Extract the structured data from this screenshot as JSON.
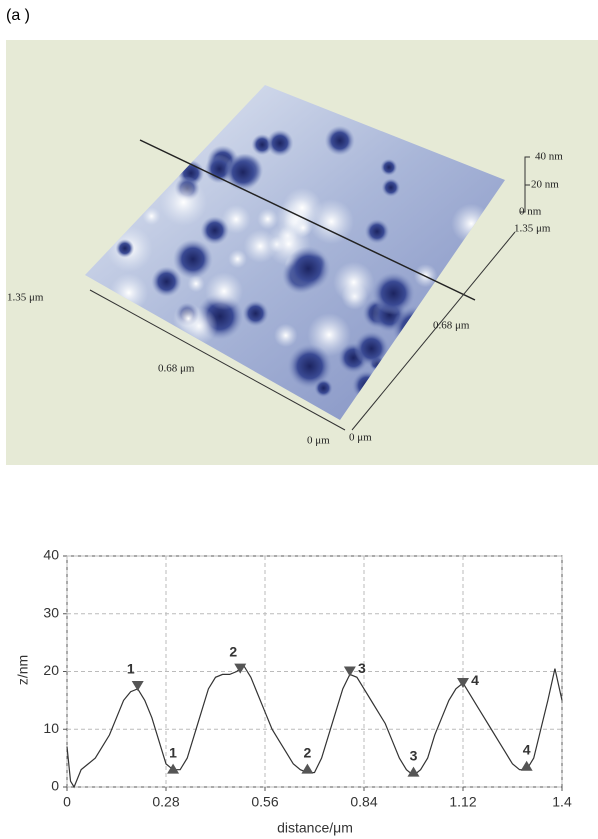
{
  "panel_label": "(a )",
  "afm_image": {
    "z_labels": [
      "40 nm",
      "20 nm",
      "0 nm"
    ],
    "right_axis_labels": [
      "1.35 μm",
      "0.68 μm",
      "0 μm"
    ],
    "left_axis_labels": [
      "1.35 μm",
      "0.68 μm",
      "0 μm"
    ]
  },
  "chart_data": {
    "type": "line",
    "xlabel": "distance/μm",
    "ylabel": "z/nm",
    "x": [
      0,
      0.01,
      0.02,
      0.04,
      0.06,
      0.08,
      0.1,
      0.12,
      0.14,
      0.16,
      0.18,
      0.2,
      0.22,
      0.24,
      0.26,
      0.28,
      0.3,
      0.32,
      0.34,
      0.36,
      0.38,
      0.4,
      0.42,
      0.44,
      0.46,
      0.48,
      0.5,
      0.52,
      0.54,
      0.56,
      0.58,
      0.6,
      0.62,
      0.64,
      0.66,
      0.68,
      0.7,
      0.72,
      0.74,
      0.76,
      0.78,
      0.8,
      0.82,
      0.84,
      0.86,
      0.88,
      0.9,
      0.92,
      0.94,
      0.96,
      0.98,
      1.0,
      1.02,
      1.04,
      1.06,
      1.08,
      1.1,
      1.12,
      1.14,
      1.16,
      1.18,
      1.2,
      1.22,
      1.24,
      1.26,
      1.28,
      1.3,
      1.32,
      1.34,
      1.36,
      1.38,
      1.4
    ],
    "values": [
      7,
      1,
      0,
      3,
      4,
      5,
      7,
      9,
      12,
      15,
      16.5,
      17,
      15,
      12,
      8,
      4,
      3,
      3,
      5,
      9,
      13,
      17,
      19,
      19.5,
      19.5,
      20,
      21,
      19,
      16,
      13,
      10,
      8,
      6,
      4,
      3,
      2.5,
      2.5,
      5,
      9,
      13,
      17,
      19.5,
      19,
      17,
      15,
      13,
      11,
      8,
      5,
      3,
      2,
      3,
      5,
      9,
      12,
      15,
      17,
      18,
      16,
      14,
      12,
      10,
      8,
      6,
      4,
      3,
      3,
      5,
      10,
      15,
      20.5,
      15
    ],
    "color": "#333333",
    "xlim": [
      0,
      1.4
    ],
    "ylim": [
      0,
      40
    ],
    "xticks": [
      0,
      0.28,
      0.56,
      0.84,
      1.12,
      1.4
    ],
    "yticks": [
      0,
      10,
      20,
      30,
      40
    ],
    "grid": true,
    "markers": [
      {
        "x": 0.2,
        "y": 17.5,
        "label": "1",
        "kind": "peak"
      },
      {
        "x": 0.3,
        "y": 3,
        "label": "1",
        "kind": "trough"
      },
      {
        "x": 0.49,
        "y": 20.5,
        "label": "2",
        "kind": "peak"
      },
      {
        "x": 0.68,
        "y": 3,
        "label": "2",
        "kind": "trough"
      },
      {
        "x": 0.8,
        "y": 20,
        "label": "3",
        "kind": "peak"
      },
      {
        "x": 0.98,
        "y": 2.5,
        "label": "3",
        "kind": "trough"
      },
      {
        "x": 1.12,
        "y": 18,
        "label": "4",
        "kind": "peak"
      },
      {
        "x": 1.3,
        "y": 3.5,
        "label": "4",
        "kind": "trough"
      }
    ]
  }
}
